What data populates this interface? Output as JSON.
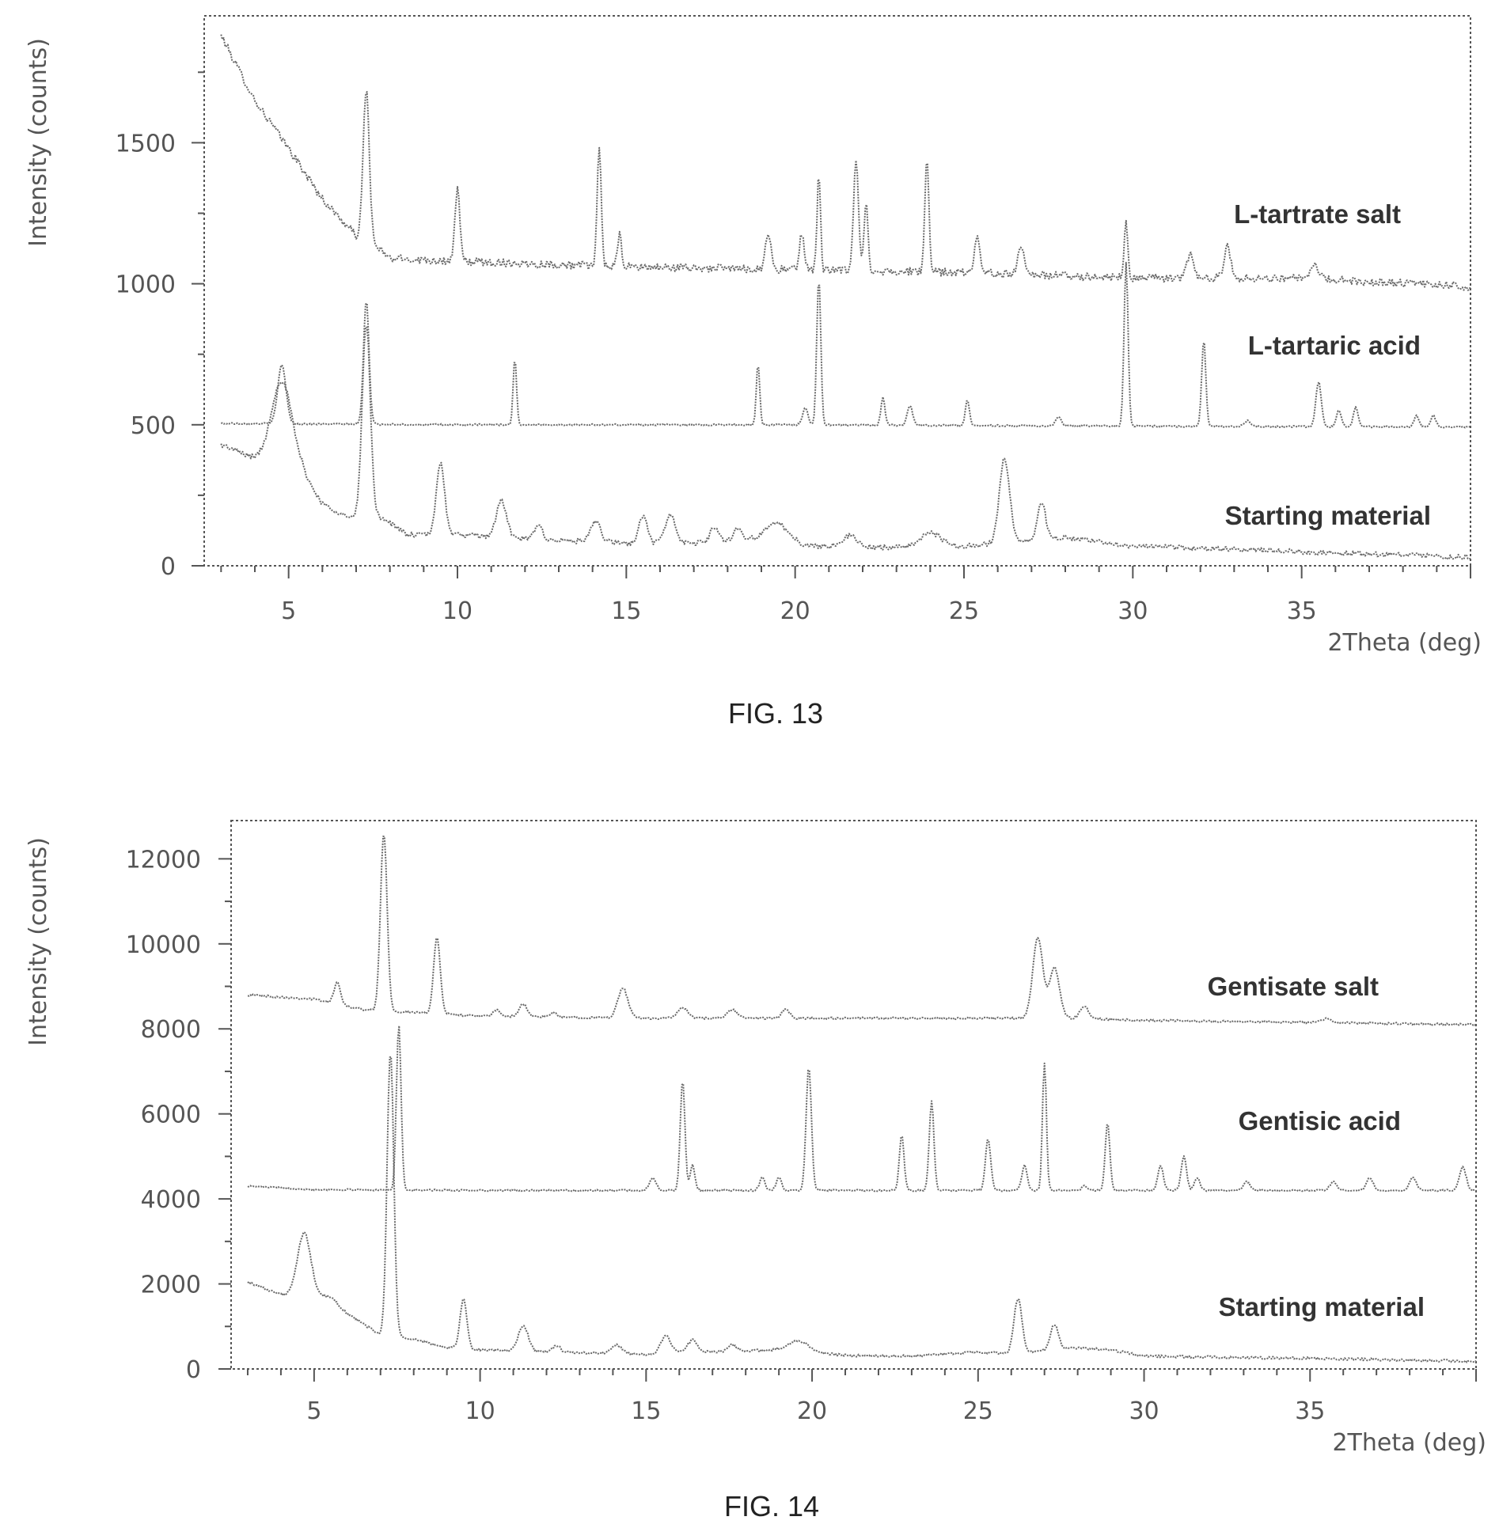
{
  "chart_data": [
    {
      "type": "line",
      "caption": "FIG. 13",
      "xlabel": "2Theta (deg)",
      "ylabel": "Intensity (counts)",
      "xlim": [
        2.5,
        40
      ],
      "ylim": [
        0,
        1950
      ],
      "xticks": [
        5,
        10,
        15,
        20,
        25,
        30,
        35
      ],
      "yticks": [
        0,
        500,
        1000,
        1500
      ],
      "grid": false,
      "series": [
        {
          "name": "L-tartrate salt",
          "start": 3,
          "end": 40,
          "noise": 14,
          "baseline": [
            [
              3,
              1880
            ],
            [
              4,
              1650
            ],
            [
              5,
              1480
            ],
            [
              6,
              1300
            ],
            [
              7,
              1170
            ],
            [
              7.6,
              1130
            ],
            [
              8,
              1090
            ],
            [
              10,
              1080
            ],
            [
              15,
              1060
            ],
            [
              20,
              1050
            ],
            [
              25,
              1040
            ],
            [
              30,
              1020
            ],
            [
              35,
              1020
            ],
            [
              40,
              990
            ]
          ],
          "peaks": [
            [
              7.3,
              540,
              0.09
            ],
            [
              10,
              260,
              0.07
            ],
            [
              14.2,
              420,
              0.06
            ],
            [
              14.8,
              110,
              0.06
            ],
            [
              19.2,
              130,
              0.08
            ],
            [
              20.2,
              130,
              0.07
            ],
            [
              20.7,
              350,
              0.05
            ],
            [
              21.8,
              400,
              0.07
            ],
            [
              22.1,
              240,
              0.06
            ],
            [
              23.9,
              400,
              0.06
            ],
            [
              25.4,
              130,
              0.08
            ],
            [
              26.7,
              100,
              0.1
            ],
            [
              29.8,
              210,
              0.05
            ],
            [
              31.7,
              80,
              0.1
            ],
            [
              32.8,
              110,
              0.1
            ],
            [
              35.4,
              50,
              0.1
            ]
          ]
        },
        {
          "name": "L-tartaric acid",
          "start": 3,
          "end": 40,
          "noise": 3,
          "baseline": [
            [
              3,
              505
            ],
            [
              10,
              500
            ],
            [
              20,
              500
            ],
            [
              30,
              495
            ],
            [
              40,
              492
            ]
          ],
          "peaks": [
            [
              4.8,
              210,
              0.12
            ],
            [
              7.3,
              440,
              0.08
            ],
            [
              11.7,
              240,
              0.05
            ],
            [
              18.9,
              220,
              0.05
            ],
            [
              20.3,
              60,
              0.08
            ],
            [
              20.7,
              520,
              0.06
            ],
            [
              22.6,
              100,
              0.06
            ],
            [
              23.4,
              70,
              0.08
            ],
            [
              25.1,
              90,
              0.06
            ],
            [
              27.8,
              30,
              0.08
            ],
            [
              29.8,
              580,
              0.06
            ],
            [
              32.1,
              310,
              0.06
            ],
            [
              33.4,
              20,
              0.1
            ],
            [
              35.5,
              160,
              0.08
            ],
            [
              36.1,
              60,
              0.07
            ],
            [
              36.6,
              70,
              0.07
            ],
            [
              38.4,
              40,
              0.07
            ],
            [
              38.9,
              40,
              0.07
            ]
          ]
        },
        {
          "name": "Starting material",
          "start": 3,
          "end": 40,
          "noise": 9,
          "baseline": [
            [
              3,
              430
            ],
            [
              4,
              380
            ],
            [
              4.5,
              370
            ],
            [
              5.4,
              330
            ],
            [
              6,
              220
            ],
            [
              6.8,
              170
            ],
            [
              7.8,
              170
            ],
            [
              8.5,
              110
            ],
            [
              10,
              110
            ],
            [
              12,
              95
            ],
            [
              15,
              80
            ],
            [
              17,
              80
            ],
            [
              19,
              100
            ],
            [
              20.5,
              70
            ],
            [
              23,
              65
            ],
            [
              25,
              70
            ],
            [
              28,
              100
            ],
            [
              30,
              70
            ],
            [
              35,
              50
            ],
            [
              40,
              30
            ]
          ],
          "peaks": [
            [
              4.8,
              300,
              0.3
            ],
            [
              7.3,
              690,
              0.12
            ],
            [
              9.5,
              260,
              0.12
            ],
            [
              11.3,
              130,
              0.15
            ],
            [
              12.4,
              50,
              0.12
            ],
            [
              14.1,
              70,
              0.15
            ],
            [
              15.5,
              100,
              0.12
            ],
            [
              16.3,
              100,
              0.15
            ],
            [
              17.6,
              50,
              0.12
            ],
            [
              18.3,
              40,
              0.12
            ],
            [
              19.5,
              60,
              0.3
            ],
            [
              21.6,
              40,
              0.2
            ],
            [
              24,
              50,
              0.3
            ],
            [
              26.2,
              300,
              0.15
            ],
            [
              27.3,
              130,
              0.12
            ]
          ]
        }
      ]
    },
    {
      "type": "line",
      "caption": "FIG. 14",
      "xlabel": "2Theta (deg)",
      "ylabel": "Intensity (counts)",
      "xlim": [
        2.5,
        40
      ],
      "ylim": [
        0,
        12900
      ],
      "xticks": [
        5,
        10,
        15,
        20,
        25,
        30,
        35
      ],
      "yticks": [
        0,
        2000,
        4000,
        6000,
        8000,
        10000,
        12000
      ],
      "grid": false,
      "series": [
        {
          "name": "Gentisate salt",
          "start": 3,
          "end": 40,
          "noise": 25,
          "baseline": [
            [
              3,
              8800
            ],
            [
              5,
              8700
            ],
            [
              6.5,
              8450
            ],
            [
              10,
              8300
            ],
            [
              15,
              8250
            ],
            [
              20,
              8250
            ],
            [
              25,
              8250
            ],
            [
              28,
              8250
            ],
            [
              30,
              8200
            ],
            [
              40,
              8100
            ]
          ],
          "peaks": [
            [
              5.7,
              500,
              0.1
            ],
            [
              7.1,
              4200,
              0.1
            ],
            [
              8.7,
              1800,
              0.1
            ],
            [
              10.5,
              150,
              0.1
            ],
            [
              11.3,
              300,
              0.12
            ],
            [
              12.2,
              100,
              0.1
            ],
            [
              14.3,
              700,
              0.15
            ],
            [
              16.1,
              250,
              0.15
            ],
            [
              17.6,
              200,
              0.15
            ],
            [
              19.2,
              200,
              0.12
            ],
            [
              26.8,
              1900,
              0.15
            ],
            [
              27.3,
              1200,
              0.15
            ],
            [
              28.2,
              300,
              0.12
            ],
            [
              35.5,
              100,
              0.15
            ]
          ]
        },
        {
          "name": "Gentisic acid",
          "start": 3,
          "end": 40,
          "noise": 20,
          "baseline": [
            [
              3,
              4300
            ],
            [
              5,
              4220
            ],
            [
              10,
              4200
            ],
            [
              20,
              4200
            ],
            [
              30,
              4200
            ],
            [
              40,
              4200
            ]
          ],
          "peaks": [
            [
              7.55,
              3900,
              0.07
            ],
            [
              15.2,
              300,
              0.1
            ],
            [
              16.1,
              2600,
              0.07
            ],
            [
              16.4,
              600,
              0.07
            ],
            [
              18.5,
              300,
              0.08
            ],
            [
              19.0,
              300,
              0.08
            ],
            [
              19.9,
              2900,
              0.08
            ],
            [
              22.7,
              1300,
              0.07
            ],
            [
              23.6,
              2100,
              0.07
            ],
            [
              25.3,
              1200,
              0.08
            ],
            [
              26.4,
              600,
              0.08
            ],
            [
              27.0,
              3000,
              0.06
            ],
            [
              28.2,
              100,
              0.08
            ],
            [
              28.9,
              1600,
              0.07
            ],
            [
              30.5,
              600,
              0.08
            ],
            [
              31.2,
              800,
              0.08
            ],
            [
              31.6,
              300,
              0.08
            ],
            [
              33.1,
              200,
              0.1
            ],
            [
              35.7,
              200,
              0.1
            ],
            [
              36.8,
              300,
              0.1
            ],
            [
              38.1,
              300,
              0.1
            ],
            [
              39.6,
              550,
              0.1
            ]
          ]
        },
        {
          "name": "Starting material",
          "start": 3,
          "end": 40,
          "noise": 30,
          "baseline": [
            [
              3,
              2050
            ],
            [
              4,
              1750
            ],
            [
              4.5,
              1700
            ],
            [
              5.5,
              1700
            ],
            [
              6,
              1300
            ],
            [
              7,
              800
            ],
            [
              8,
              700
            ],
            [
              9,
              500
            ],
            [
              10,
              450
            ],
            [
              12,
              400
            ],
            [
              15,
              350
            ],
            [
              19,
              450
            ],
            [
              21,
              320
            ],
            [
              23,
              300
            ],
            [
              25,
              400
            ],
            [
              26,
              350
            ],
            [
              28,
              500
            ],
            [
              29,
              450
            ],
            [
              30,
              300
            ],
            [
              35,
              250
            ],
            [
              40,
              180
            ]
          ],
          "peaks": [
            [
              4.7,
              1500,
              0.2
            ],
            [
              7.3,
              6700,
              0.1
            ],
            [
              9.5,
              1200,
              0.1
            ],
            [
              11.3,
              600,
              0.15
            ],
            [
              12.3,
              150,
              0.12
            ],
            [
              14.1,
              200,
              0.15
            ],
            [
              15.6,
              400,
              0.15
            ],
            [
              16.4,
              300,
              0.15
            ],
            [
              17.6,
              150,
              0.12
            ],
            [
              19.6,
              250,
              0.3
            ],
            [
              26.2,
              1300,
              0.12
            ],
            [
              27.3,
              600,
              0.12
            ]
          ]
        }
      ]
    }
  ]
}
